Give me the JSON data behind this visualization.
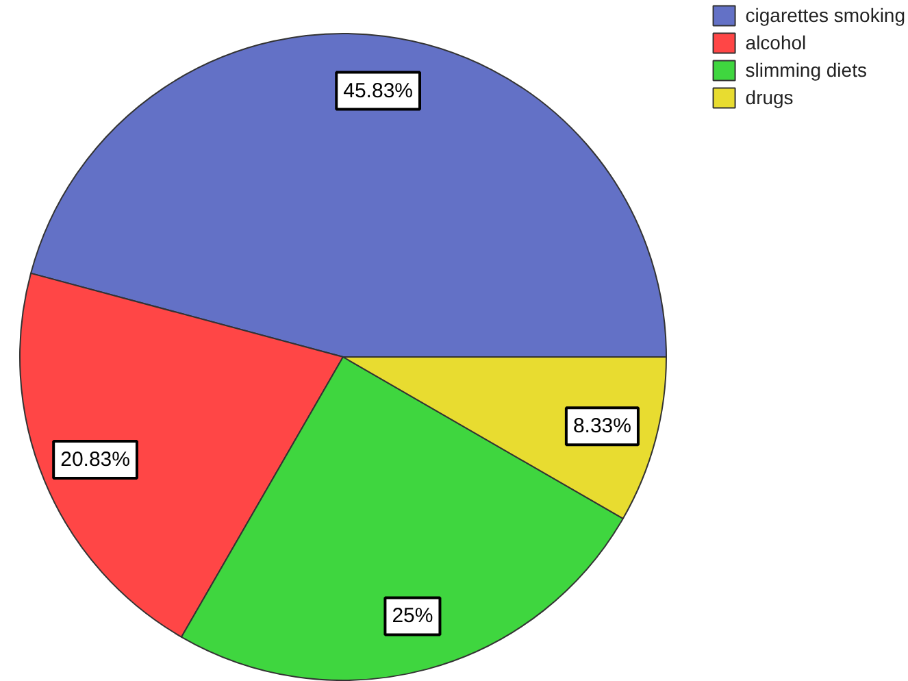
{
  "chart_data": {
    "type": "pie",
    "categories": [
      "cigarettes smoking",
      "alcohol",
      "slimming diets",
      "drugs"
    ],
    "values": [
      45.83,
      20.83,
      25,
      8.33
    ],
    "colors": [
      "#6371c6",
      "#ff4646",
      "#3fd63f",
      "#e8dc30"
    ],
    "value_labels": [
      "45.83%",
      "20.83%",
      "25%",
      "8.33%"
    ],
    "legend": "top right"
  }
}
